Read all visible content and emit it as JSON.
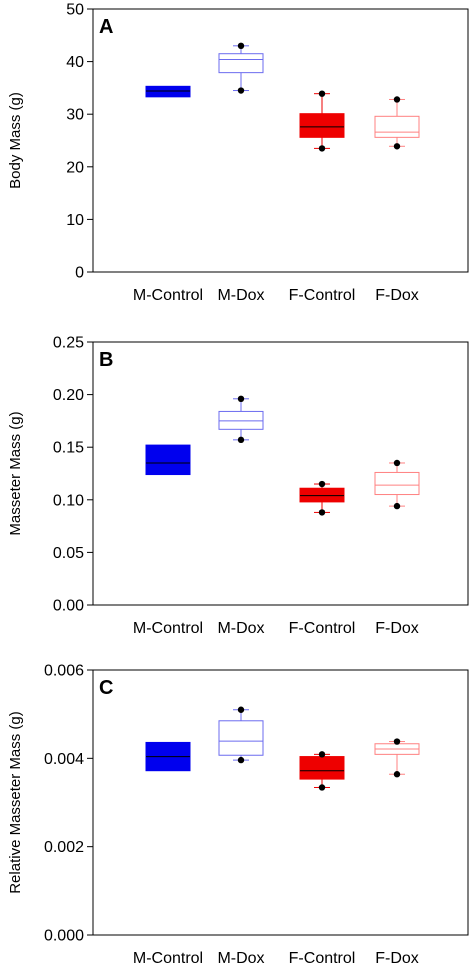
{
  "chart_data": [
    {
      "type": "box",
      "panel_label": "A",
      "ylabel": "Body Mass (g)",
      "ylim": [
        0,
        50
      ],
      "yticks": [
        "0",
        "10",
        "20",
        "30",
        "40",
        "50"
      ],
      "categories": [
        "M-Control",
        "M-Dox",
        "F-Control",
        "F-Dox"
      ],
      "boxes": [
        {
          "category": "M-Control",
          "q1": 33.3,
          "median": 34.4,
          "q3": 35.3,
          "whisker_low": 33.3,
          "whisker_high": 35.3,
          "outliers": [],
          "color": "#0000ee",
          "filled": true
        },
        {
          "category": "M-Dox",
          "q1": 37.9,
          "median": 40.4,
          "q3": 41.5,
          "whisker_low": 34.5,
          "whisker_high": 43.0,
          "outliers": [
            34.5,
            43.0
          ],
          "color": "#6b6bef",
          "filled": false
        },
        {
          "category": "F-Control",
          "q1": 25.6,
          "median": 27.6,
          "q3": 30.1,
          "whisker_low": 23.5,
          "whisker_high": 33.9,
          "outliers": [
            23.5,
            33.9
          ],
          "color": "#ee0000",
          "filled": true
        },
        {
          "category": "F-Dox",
          "q1": 25.6,
          "median": 26.6,
          "q3": 29.6,
          "whisker_low": 23.9,
          "whisker_high": 32.8,
          "outliers": [
            23.9,
            32.8
          ],
          "color": "#ff8080",
          "filled": false
        }
      ]
    },
    {
      "type": "box",
      "panel_label": "B",
      "ylabel": "Masseter Mass (g)",
      "ylim": [
        0,
        0.25
      ],
      "yticks": [
        "0.00",
        "0.05",
        "0.10",
        "0.15",
        "0.20",
        "0.25"
      ],
      "categories": [
        "M-Control",
        "M-Dox",
        "F-Control",
        "F-Dox"
      ],
      "boxes": [
        {
          "category": "M-Control",
          "q1": 0.124,
          "median": 0.135,
          "q3": 0.152,
          "whisker_low": 0.124,
          "whisker_high": 0.152,
          "outliers": [],
          "color": "#0000ee",
          "filled": true
        },
        {
          "category": "M-Dox",
          "q1": 0.167,
          "median": 0.175,
          "q3": 0.184,
          "whisker_low": 0.157,
          "whisker_high": 0.196,
          "outliers": [
            0.157,
            0.196
          ],
          "color": "#6b6bef",
          "filled": false
        },
        {
          "category": "F-Control",
          "q1": 0.098,
          "median": 0.104,
          "q3": 0.111,
          "whisker_low": 0.088,
          "whisker_high": 0.115,
          "outliers": [
            0.088,
            0.115
          ],
          "color": "#ee0000",
          "filled": true
        },
        {
          "category": "F-Dox",
          "q1": 0.105,
          "median": 0.114,
          "q3": 0.126,
          "whisker_low": 0.094,
          "whisker_high": 0.135,
          "outliers": [
            0.094,
            0.135
          ],
          "color": "#ff8080",
          "filled": false
        }
      ]
    },
    {
      "type": "box",
      "panel_label": "C",
      "ylabel": "Relative Masseter Mass (g)",
      "ylim": [
        0,
        0.006
      ],
      "yticks": [
        "0.000",
        "0.002",
        "0.004",
        "0.006"
      ],
      "categories": [
        "M-Control",
        "M-Dox",
        "F-Control",
        "F-Dox"
      ],
      "boxes": [
        {
          "category": "M-Control",
          "q1": 0.00372,
          "median": 0.00404,
          "q3": 0.00436,
          "whisker_low": 0.00372,
          "whisker_high": 0.00436,
          "outliers": [],
          "color": "#0000ee",
          "filled": true
        },
        {
          "category": "M-Dox",
          "q1": 0.00407,
          "median": 0.00439,
          "q3": 0.00485,
          "whisker_low": 0.00396,
          "whisker_high": 0.0051,
          "outliers": [
            0.00396,
            0.0051
          ],
          "color": "#6b6bef",
          "filled": false
        },
        {
          "category": "F-Control",
          "q1": 0.00353,
          "median": 0.00372,
          "q3": 0.00404,
          "whisker_low": 0.00334,
          "whisker_high": 0.00409,
          "outliers": [
            0.00334,
            0.00409
          ],
          "color": "#ee0000",
          "filled": true
        },
        {
          "category": "F-Dox",
          "q1": 0.00409,
          "median": 0.00421,
          "q3": 0.00433,
          "whisker_low": 0.00364,
          "whisker_high": 0.00438,
          "outliers": [
            0.00364,
            0.00438
          ],
          "color": "#ff8080",
          "filled": false
        }
      ]
    }
  ]
}
